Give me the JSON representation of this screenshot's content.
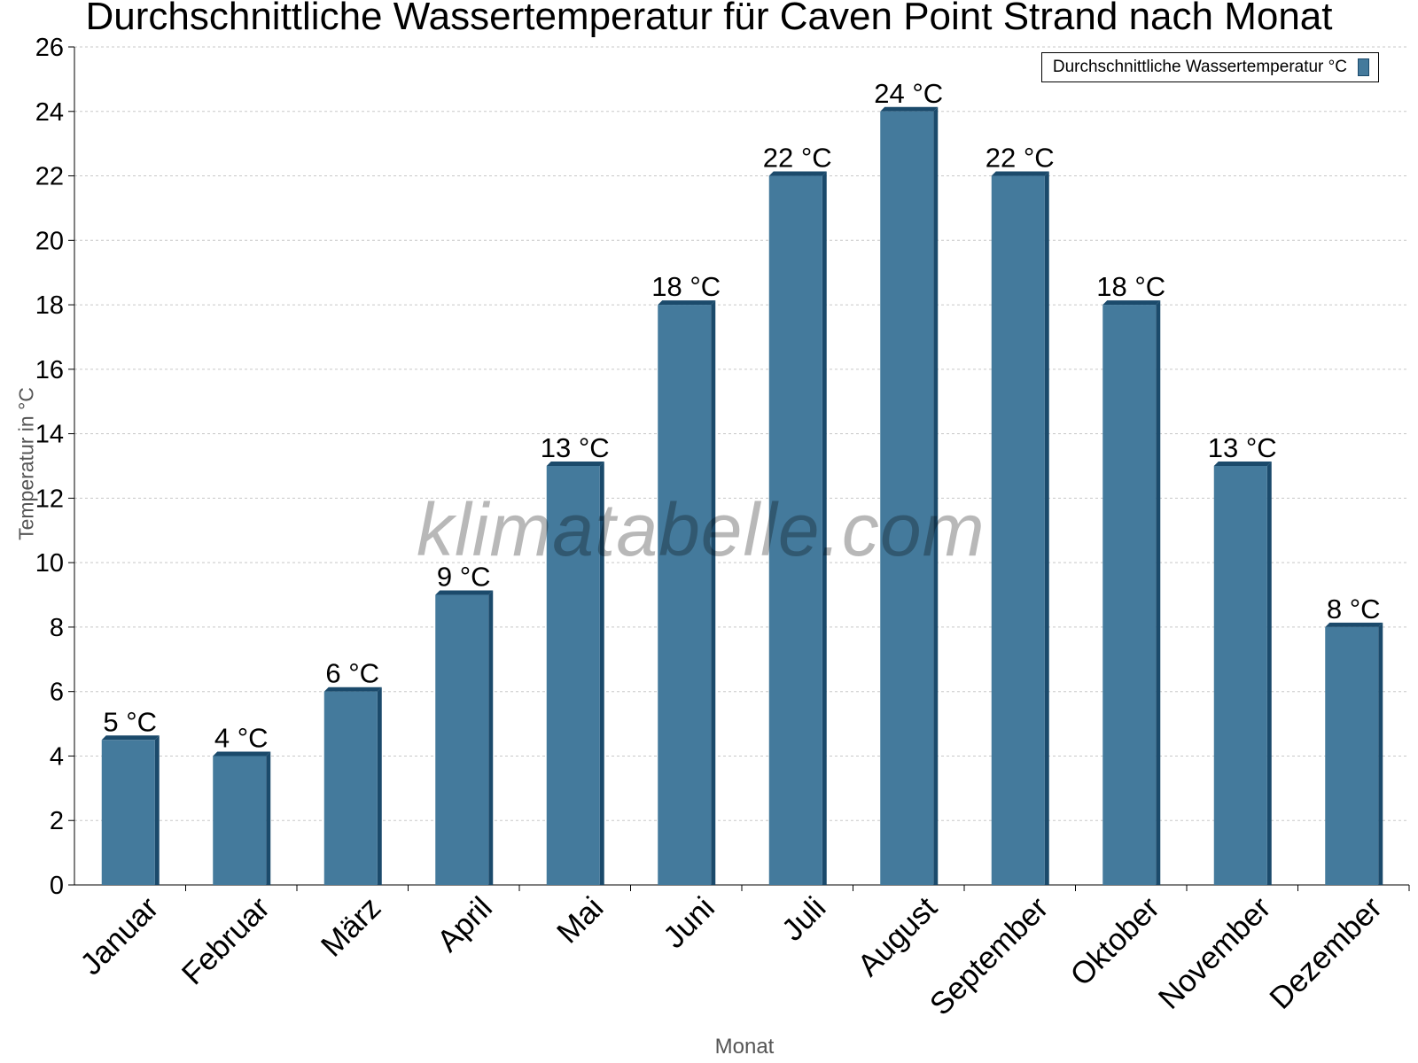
{
  "chart_data": {
    "type": "bar",
    "title": "Durchschnittliche Wassertemperatur für Caven Point Strand nach Monat",
    "xlabel": "Monat",
    "ylabel": "Temperatur in °C",
    "categories": [
      "Januar",
      "Februar",
      "März",
      "April",
      "Mai",
      "Juni",
      "Juli",
      "August",
      "September",
      "Oktober",
      "November",
      "Dezember"
    ],
    "series": [
      {
        "name": "Durchschnittliche Wassertemperatur °C",
        "values": [
          4.5,
          4.0,
          6.0,
          9.0,
          13.0,
          18.0,
          22.0,
          24.0,
          22.0,
          18.0,
          13.0,
          8.0
        ],
        "labels": [
          "5 °C",
          "4 °C",
          "6 °C",
          "9 °C",
          "13 °C",
          "18 °C",
          "22 °C",
          "24 °C",
          "22 °C",
          "18 °C",
          "13 °C",
          "8 °C"
        ],
        "color": "#447a9c",
        "edge_color": "#1b4a6b"
      }
    ],
    "ylim": [
      0,
      26
    ],
    "yticks": [
      0,
      2,
      4,
      6,
      8,
      10,
      12,
      14,
      16,
      18,
      20,
      22,
      24,
      26
    ],
    "grid": true,
    "legend_position": "top-right"
  },
  "watermark": "klimatabelle.com"
}
